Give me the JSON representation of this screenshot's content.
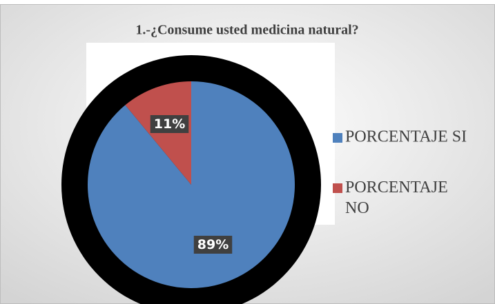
{
  "chart_data": {
    "type": "pie",
    "title": "1.-¿Consume usted medicina natural?",
    "categories": [
      "PORCENTAJE SI",
      "PORCENTAJE NO"
    ],
    "values": [
      89,
      11
    ],
    "value_labels": [
      "89%",
      "11%"
    ],
    "colors": [
      "#4f81bd",
      "#c0504d"
    ],
    "legend": "right"
  }
}
